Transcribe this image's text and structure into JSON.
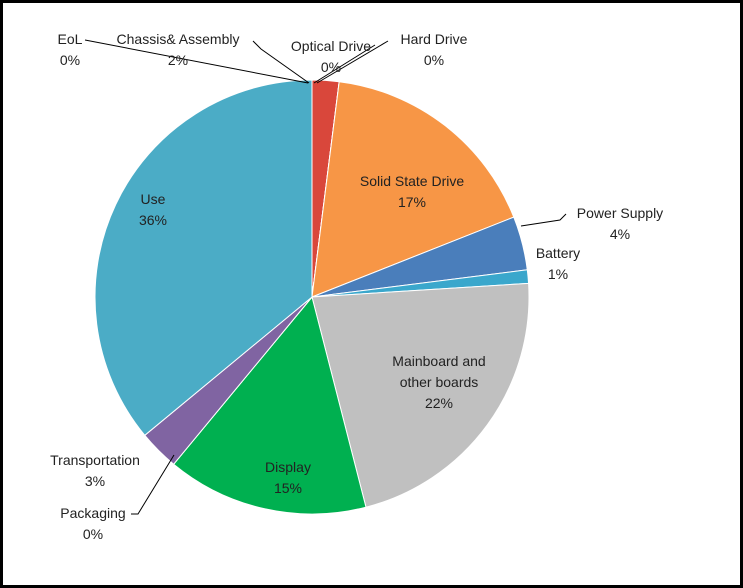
{
  "chart_data": {
    "type": "pie",
    "categories": [
      "Chassis& Assembly",
      "Optical Drive",
      "Hard Drive",
      "Solid State Drive",
      "Power Supply",
      "Battery",
      "Mainboard and other boards",
      "Display",
      "Packaging",
      "Transportation",
      "Use",
      "EoL"
    ],
    "values": [
      2,
      0,
      0,
      17,
      4,
      1,
      22,
      15,
      0,
      3,
      36,
      0
    ],
    "value_labels": [
      "2%",
      "0%",
      "0%",
      "17%",
      "4%",
      "1%",
      "22%",
      "15%",
      "0%",
      "3%",
      "36%",
      "0%"
    ],
    "colors": [
      "#d9473b",
      "#a5a5a5",
      "#5b9bd5",
      "#f79646",
      "#4a7ebb",
      "#3aa7cc",
      "#c0c0c0",
      "#00b050",
      "#9bbb59",
      "#8064a2",
      "#4bacc6",
      "#f79646"
    ]
  }
}
